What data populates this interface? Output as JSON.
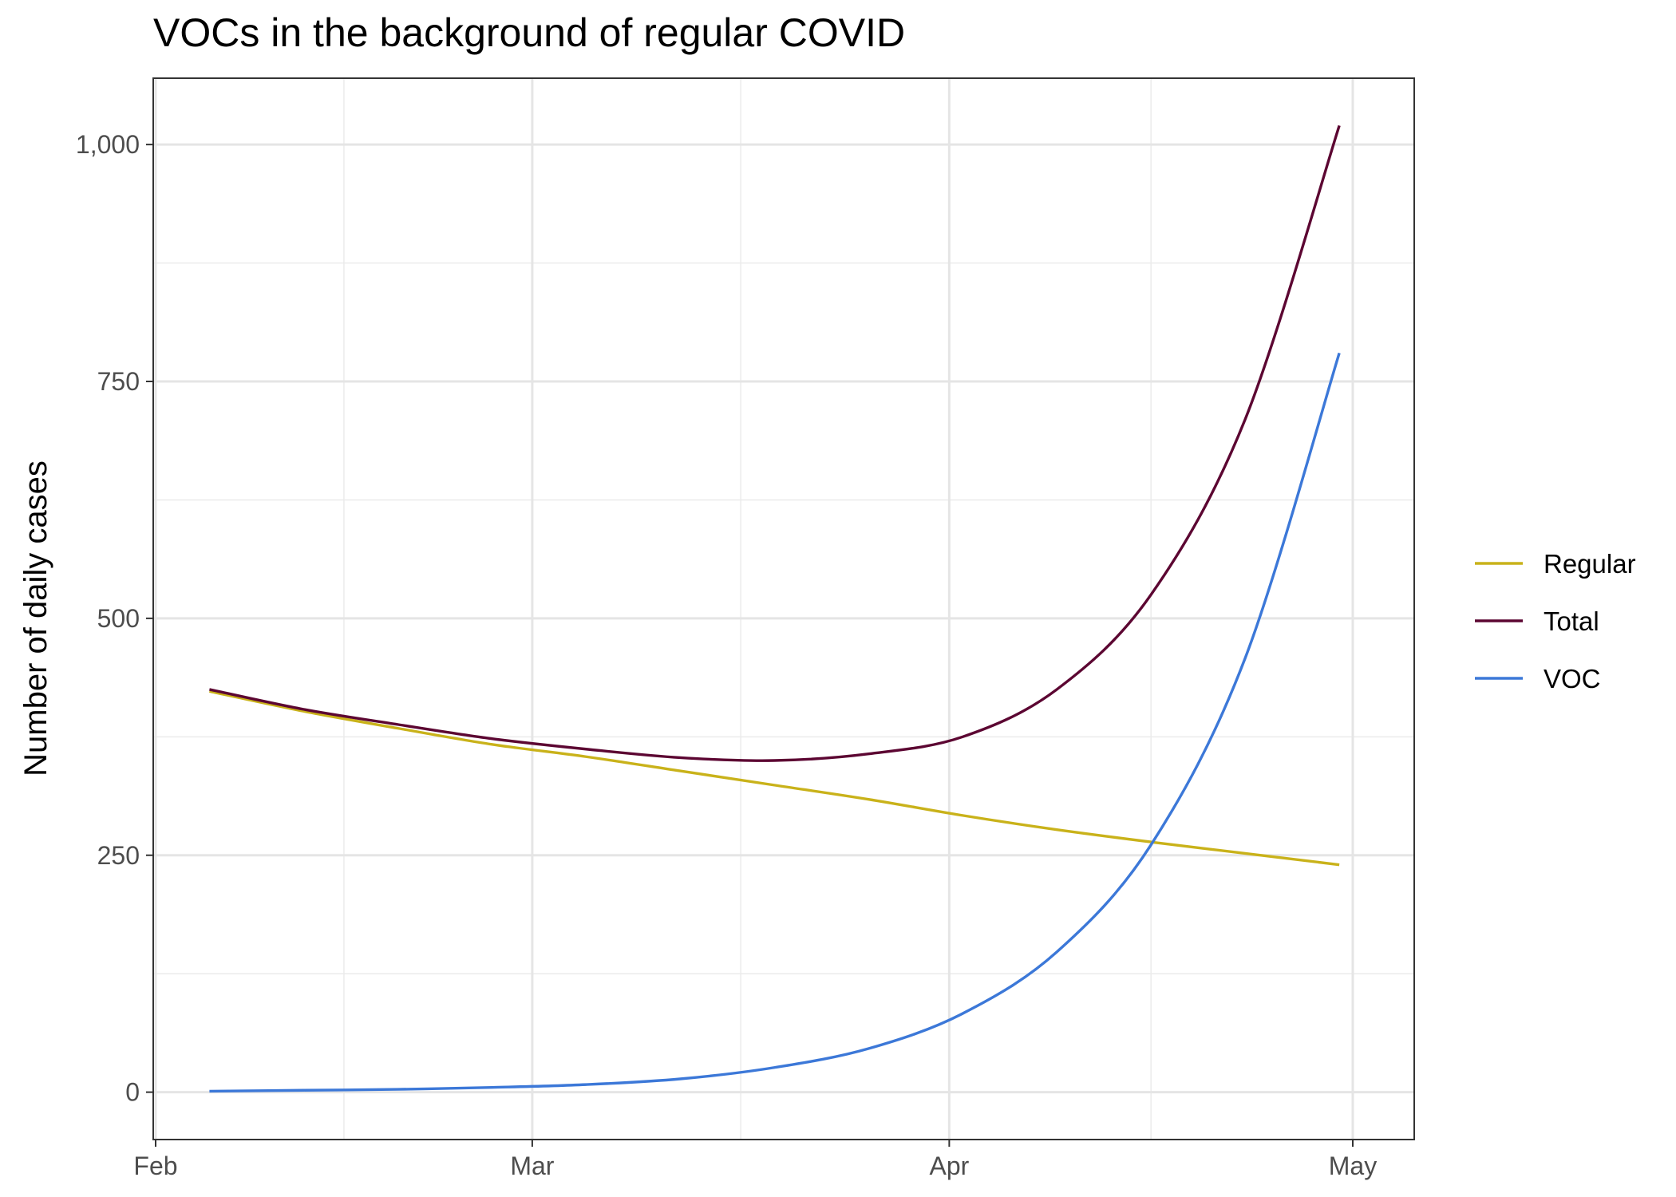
{
  "chart_data": {
    "type": "line",
    "title": "VOCs in the background of regular COVID",
    "xlabel": "",
    "ylabel": "Number of daily cases",
    "x_axis_type": "date",
    "xlim": [
      "2021-02-01",
      "2021-05-01"
    ],
    "ylim": [
      -50,
      1070
    ],
    "x_ticks": [
      {
        "date": "2021-02-01",
        "label": "Feb"
      },
      {
        "date": "2021-03-01",
        "label": "Mar"
      },
      {
        "date": "2021-04-01",
        "label": "Apr"
      },
      {
        "date": "2021-05-01",
        "label": "May"
      }
    ],
    "y_ticks": [
      {
        "value": 0,
        "label": "0"
      },
      {
        "value": 250,
        "label": "250"
      },
      {
        "value": 500,
        "label": "500"
      },
      {
        "value": 750,
        "label": "750"
      },
      {
        "value": 1000,
        "label": "1,000"
      }
    ],
    "grid": true,
    "legend_position": "right",
    "x": [
      "2021-02-05",
      "2021-02-12",
      "2021-02-19",
      "2021-02-26",
      "2021-03-05",
      "2021-03-12",
      "2021-03-19",
      "2021-03-26",
      "2021-04-02",
      "2021-04-09",
      "2021-04-16",
      "2021-04-23",
      "2021-04-30"
    ],
    "series": [
      {
        "name": "Regular",
        "color": "#c9b21a",
        "values": [
          423,
          402,
          384,
          367,
          354,
          339,
          324,
          309,
          292,
          277,
          264,
          252,
          240
        ]
      },
      {
        "name": "Total",
        "color": "#5c0632",
        "values": [
          425,
          404,
          388,
          373,
          362,
          353,
          350,
          357,
          375,
          425,
          525,
          710,
          1020
        ]
      },
      {
        "name": "VOC",
        "color": "#3c78d8",
        "values": [
          1,
          2,
          3,
          5,
          8,
          14,
          26,
          46,
          83,
          148,
          261,
          458,
          780
        ]
      }
    ]
  }
}
